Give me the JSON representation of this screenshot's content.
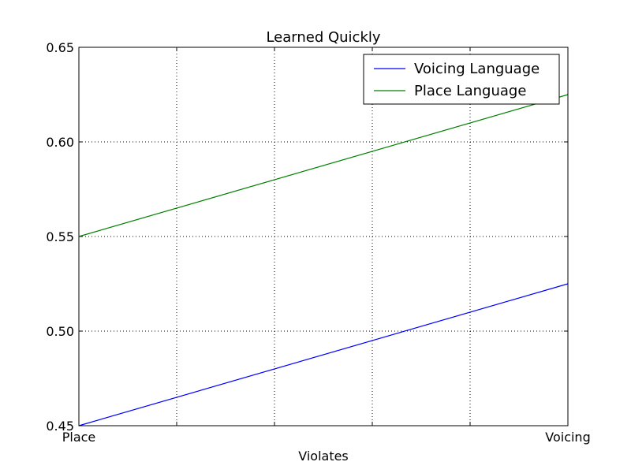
{
  "chart_data": {
    "type": "line",
    "title": "Learned Quickly",
    "xlabel": "Violates",
    "ylabel": "",
    "x_categories": [
      "Place",
      "Voicing"
    ],
    "xlim": [
      0,
      1
    ],
    "ylim": [
      0.45,
      0.65
    ],
    "y_ticks": [
      "0.45",
      "0.50",
      "0.55",
      "0.60",
      "0.65"
    ],
    "grid": true,
    "legend_position": "top-right",
    "series": [
      {
        "name": "Voicing Language",
        "color": "#0000ff",
        "values": [
          0.45,
          0.525
        ]
      },
      {
        "name": "Place Language",
        "color": "#008000",
        "values": [
          0.55,
          0.625
        ]
      }
    ]
  }
}
